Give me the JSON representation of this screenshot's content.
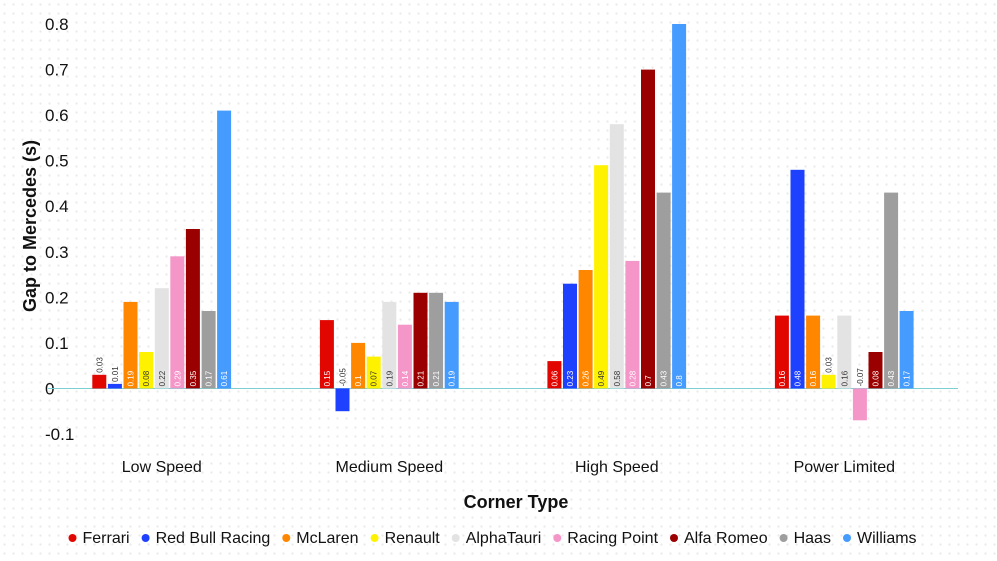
{
  "chart_data": {
    "type": "bar",
    "title": "",
    "xlabel": "Corner Type",
    "ylabel": "Gap to Mercedes (s)",
    "ylim": [
      -0.1,
      0.8
    ],
    "yticks": [
      -0.1,
      0,
      0.1,
      0.2,
      0.3,
      0.4,
      0.5,
      0.6,
      0.7,
      0.8
    ],
    "grid": false,
    "legend_position": "bottom",
    "categories": [
      "Low Speed",
      "Medium Speed",
      "High Speed",
      "Power Limited"
    ],
    "series": [
      {
        "name": "Ferrari",
        "color": "#e10600",
        "values": [
          0.03,
          0.15,
          0.06,
          0.16
        ],
        "labels": [
          "0.03",
          "0.15",
          "0.06",
          "0.16"
        ]
      },
      {
        "name": "Red Bull Racing",
        "color": "#1e41ff",
        "values": [
          0.01,
          -0.05,
          0.23,
          0.48
        ],
        "labels": [
          "0.01",
          "-0.05",
          "0.23",
          "0.48"
        ]
      },
      {
        "name": "McLaren",
        "color": "#ff8700",
        "values": [
          0.19,
          0.1,
          0.26,
          0.16
        ],
        "labels": [
          "0.19",
          "0.1",
          "0.26",
          "0.16"
        ]
      },
      {
        "name": "Renault",
        "color": "#fff200",
        "values": [
          0.08,
          0.07,
          0.49,
          0.03
        ],
        "labels": [
          "0.08",
          "0.07",
          "0.49",
          "0.03"
        ]
      },
      {
        "name": "AlphaTauri",
        "color": "#e3e3e3",
        "values": [
          0.22,
          0.19,
          0.58,
          0.16
        ],
        "labels": [
          "0.22",
          "0.19",
          "0.58",
          "0.16"
        ]
      },
      {
        "name": "Racing Point",
        "color": "#f596c8",
        "values": [
          0.29,
          0.14,
          0.28,
          -0.07
        ],
        "labels": [
          "0.29",
          "0.14",
          "0.28",
          "-0.07"
        ]
      },
      {
        "name": "Alfa Romeo",
        "color": "#9b0000",
        "values": [
          0.35,
          0.21,
          0.7,
          0.08
        ],
        "labels": [
          "0.35",
          "0.21",
          "0.7",
          "0.08"
        ]
      },
      {
        "name": "Haas",
        "color": "#9e9e9e",
        "values": [
          0.17,
          0.21,
          0.43,
          0.43
        ],
        "labels": [
          "0.17",
          "0.21",
          "0.43",
          "0.43"
        ]
      },
      {
        "name": "Williams",
        "color": "#469bff",
        "values": [
          0.61,
          0.19,
          0.8,
          0.17
        ],
        "labels": [
          "0.61",
          "0.19",
          "0.8",
          "0.17"
        ]
      }
    ],
    "label_colors": {
      "light": "#ffffff",
      "dark": "#333333"
    },
    "zero_line_color": "#7ecfd4"
  }
}
